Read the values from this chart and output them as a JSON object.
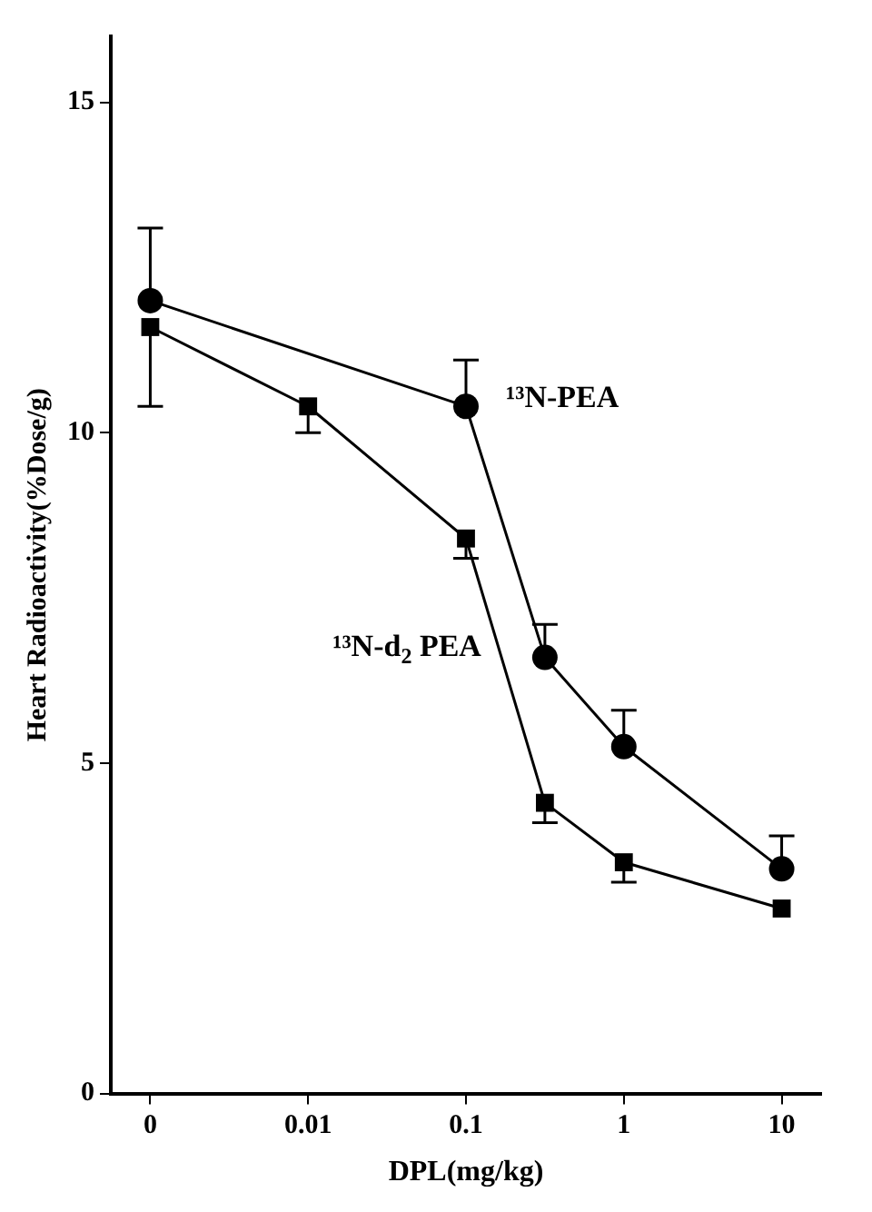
{
  "chart_data": {
    "type": "line",
    "xlabel": "DPL(mg/kg)",
    "ylabel": "Heart Radioactivity(%Dose/g)",
    "categories": [
      "0",
      null,
      "0.01",
      null,
      "0.1",
      null,
      "1",
      null,
      "10"
    ],
    "series": [
      {
        "name": "¹³N-PEA",
        "color": "#000000",
        "marker": "circle",
        "values": [
          12.0,
          null,
          null,
          null,
          10.4,
          6.6,
          5.25,
          null,
          3.4
        ],
        "errors": [
          [
            12.0,
            13.1
          ],
          null,
          null,
          null,
          [
            10.4,
            11.1
          ],
          [
            6.6,
            7.1
          ],
          [
            5.25,
            5.8
          ],
          null,
          [
            3.4,
            3.9
          ]
        ]
      },
      {
        "name": "¹³N-d$_{2}$ PEA",
        "color": "#000000",
        "marker": "square",
        "values": [
          11.6,
          null,
          10.4,
          null,
          8.4,
          4.4,
          3.5,
          null,
          2.8
        ],
        "errors": [
          [
            10.4,
            11.6
          ],
          null,
          [
            10.0,
            10.4
          ],
          null,
          [
            8.1,
            8.4
          ],
          [
            4.1,
            4.4
          ],
          [
            3.2,
            3.5
          ],
          null,
          null
        ]
      }
    ],
    "ylim": [
      0,
      16
    ],
    "yticks": [
      0,
      5,
      10,
      15
    ],
    "grid": false,
    "legend": false,
    "line_style": "solid"
  }
}
